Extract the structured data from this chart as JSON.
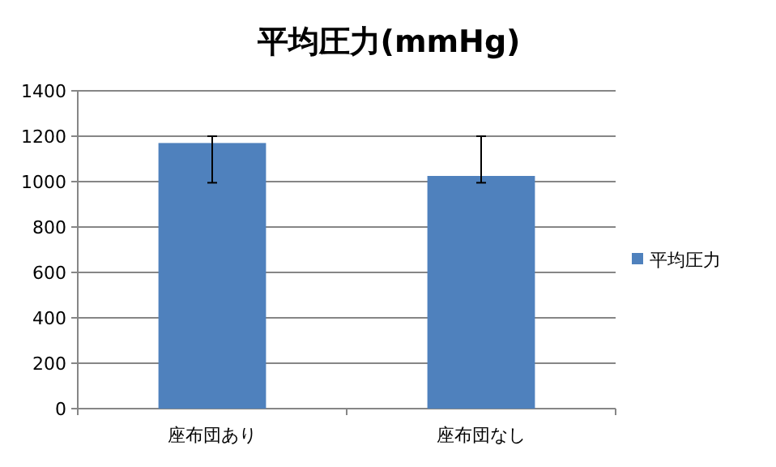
{
  "chart_data": {
    "type": "bar",
    "title": "平均圧力(mmHg)",
    "categories": [
      "座布団あり",
      "座布団なし"
    ],
    "series": [
      {
        "name": "平均圧力",
        "color": "#4f81bd",
        "values": [
          1170,
          1025
        ],
        "errors": [
          [
            995,
            1200
          ],
          [
            995,
            1200
          ]
        ]
      }
    ],
    "ylim": [
      0,
      1400
    ],
    "yticks": [
      0,
      200,
      400,
      600,
      800,
      1000,
      1200,
      1400
    ],
    "grid": "y",
    "legend": "right"
  }
}
